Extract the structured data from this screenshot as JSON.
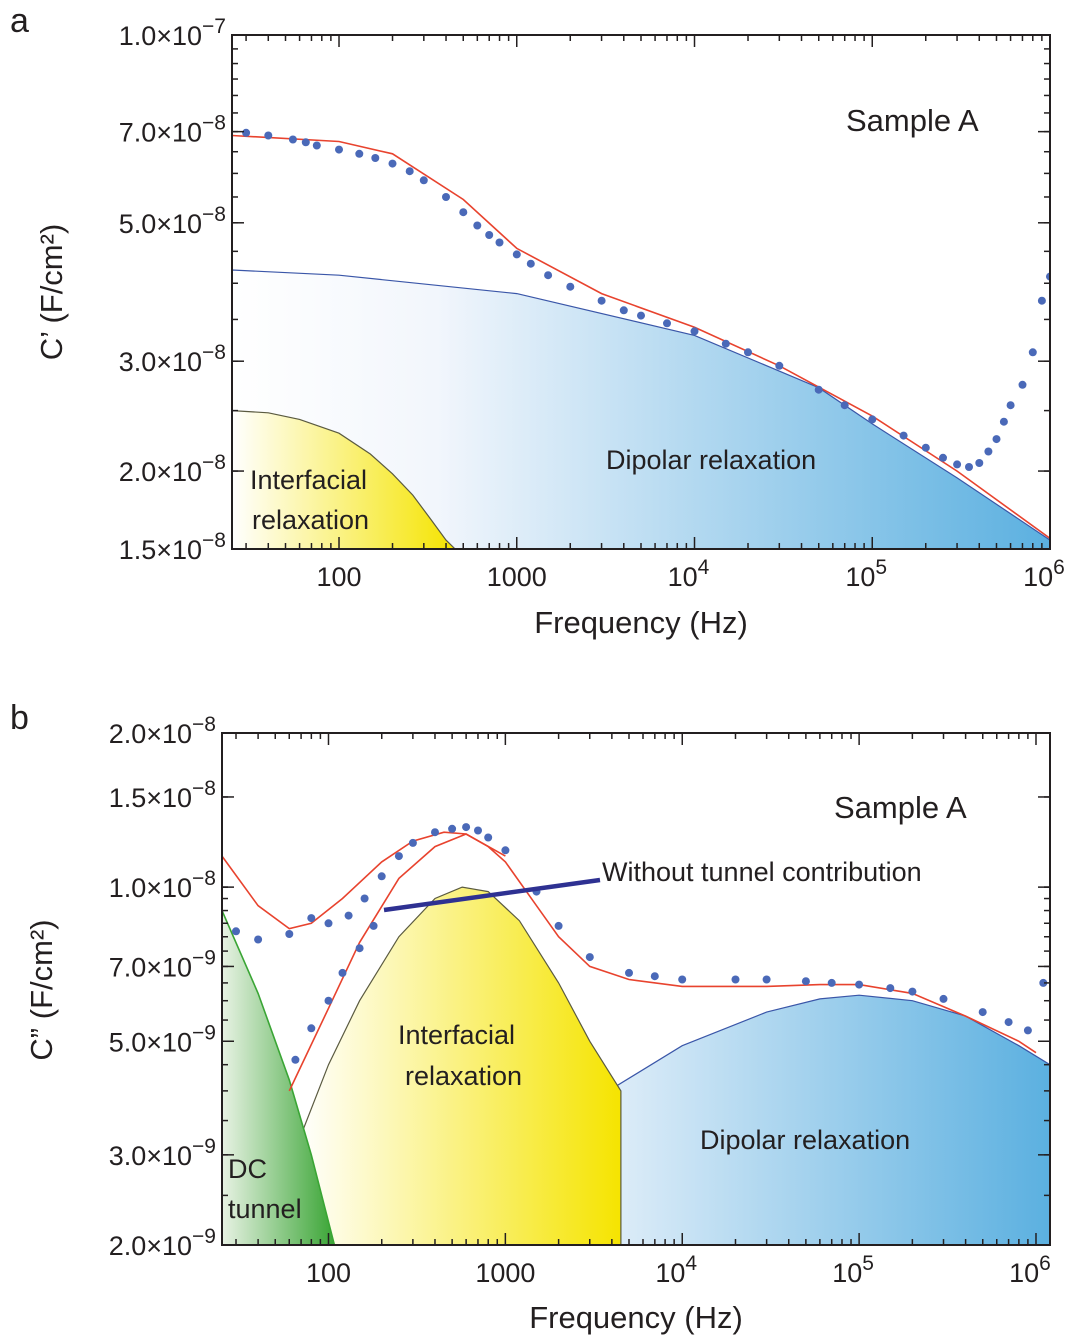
{
  "chart_data": [
    {
      "panel": "a",
      "type": "scatter",
      "sample_label": "Sample A",
      "xlabel": "Frequency (Hz)",
      "ylabel": "C’ (F/cm²)",
      "x_scale": "log",
      "y_scale": "log",
      "xlim": [
        25,
        1000000
      ],
      "ylim": [
        1.5e-08,
        1e-07
      ],
      "grid": false,
      "x_ticks": [
        {
          "value": 100,
          "label": "100"
        },
        {
          "value": 1000,
          "label": "1000"
        },
        {
          "value": 10000,
          "base": "10",
          "exp": "4"
        },
        {
          "value": 100000,
          "base": "10",
          "exp": "5"
        },
        {
          "value": 1000000,
          "base": "10",
          "exp": "6"
        }
      ],
      "y_ticks": [
        {
          "value": 1e-07,
          "mant": "1.0",
          "exp": "−7"
        },
        {
          "value": 7e-08,
          "mant": "7.0",
          "exp": "−8"
        },
        {
          "value": 5e-08,
          "mant": "5.0",
          "exp": "−8"
        },
        {
          "value": 3e-08,
          "mant": "3.0",
          "exp": "−8"
        },
        {
          "value": 2e-08,
          "mant": "2.0",
          "exp": "−8"
        },
        {
          "value": 1.5e-08,
          "mant": "1.5",
          "exp": "−8"
        }
      ],
      "regions": [
        {
          "label_lines": [
            "Interfacial",
            "relaxation"
          ],
          "color": "#f5e400",
          "x": [
            25,
            40,
            60,
            100,
            150,
            200,
            260,
            330,
            400,
            450
          ],
          "y": [
            2.5e-08,
            2.48e-08,
            2.42e-08,
            2.3e-08,
            2.13e-08,
            1.98e-08,
            1.83e-08,
            1.67e-08,
            1.55e-08,
            1.5e-08
          ]
        },
        {
          "label_lines": [
            "Dipolar relaxation"
          ],
          "color": "#5bb0e0",
          "x": [
            25,
            100,
            1000,
            10000,
            50000,
            100000,
            300000,
            1000000
          ],
          "y": [
            4.2e-08,
            4.12e-08,
            3.85e-08,
            3.3e-08,
            2.72e-08,
            2.38e-08,
            1.95e-08,
            1.55e-08
          ]
        }
      ],
      "fit": {
        "color": "#e8432e",
        "x": [
          25,
          100,
          200,
          500,
          1000,
          3000,
          10000,
          30000,
          100000,
          300000,
          1000000
        ],
        "y": [
          6.9e-08,
          6.75e-08,
          6.45e-08,
          5.45e-08,
          4.55e-08,
          3.85e-08,
          3.4e-08,
          2.95e-08,
          2.45e-08,
          2e-08,
          1.56e-08
        ]
      },
      "series": [
        {
          "marker_color": "#4a69b8",
          "x": [
            30,
            40,
            55,
            65,
            75,
            100,
            130,
            160,
            200,
            250,
            300,
            400,
            500,
            600,
            700,
            800,
            1000,
            1200,
            1500,
            2000,
            3000,
            4000,
            5000,
            7000,
            10000,
            15000,
            20000,
            30000,
            50000,
            70000,
            100000,
            150000,
            200000,
            250000,
            300000,
            350000,
            400000,
            450000,
            500000,
            550000,
            600000,
            700000,
            800000,
            900000,
            1000000
          ],
          "y": [
            6.97e-08,
            6.9e-08,
            6.8e-08,
            6.73e-08,
            6.65e-08,
            6.55e-08,
            6.45e-08,
            6.35e-08,
            6.22e-08,
            6.05e-08,
            5.85e-08,
            5.5e-08,
            5.2e-08,
            4.95e-08,
            4.78e-08,
            4.65e-08,
            4.45e-08,
            4.3e-08,
            4.12e-08,
            3.95e-08,
            3.75e-08,
            3.62e-08,
            3.55e-08,
            3.45e-08,
            3.35e-08,
            3.2e-08,
            3.1e-08,
            2.95e-08,
            2.7e-08,
            2.55e-08,
            2.42e-08,
            2.28e-08,
            2.18e-08,
            2.1e-08,
            2.05e-08,
            2.03e-08,
            2.06e-08,
            2.15e-08,
            2.25e-08,
            2.4e-08,
            2.55e-08,
            2.75e-08,
            3.1e-08,
            3.75e-08,
            4.1e-08
          ]
        }
      ]
    },
    {
      "panel": "b",
      "type": "scatter",
      "sample_label": "Sample A",
      "xlabel": "Frequency (Hz)",
      "ylabel": "C” (F/cm²)",
      "x_scale": "log",
      "y_scale": "log",
      "xlim": [
        25,
        1200000
      ],
      "ylim": [
        2e-09,
        2e-08
      ],
      "grid": false,
      "x_ticks": [
        {
          "value": 100,
          "label": "100"
        },
        {
          "value": 1000,
          "label": "1000"
        },
        {
          "value": 10000,
          "base": "10",
          "exp": "4"
        },
        {
          "value": 100000,
          "base": "10",
          "exp": "5"
        },
        {
          "value": 1000000,
          "base": "10",
          "exp": "6"
        }
      ],
      "y_ticks": [
        {
          "value": 2e-08,
          "mant": "2.0",
          "exp": "−8"
        },
        {
          "value": 1.5e-08,
          "mant": "1.5",
          "exp": "−8"
        },
        {
          "value": 1e-08,
          "mant": "1.0",
          "exp": "−8"
        },
        {
          "value": 7e-09,
          "mant": "7.0",
          "exp": "−9"
        },
        {
          "value": 5e-09,
          "mant": "5.0",
          "exp": "−9"
        },
        {
          "value": 3e-09,
          "mant": "3.0",
          "exp": "−9"
        },
        {
          "value": 2e-09,
          "mant": "2.0",
          "exp": "−9"
        }
      ],
      "annotation": "Without tunnel contribution",
      "regions": [
        {
          "label_lines": [
            "DC",
            "tunnel"
          ],
          "color": "#3aa535",
          "x": [
            25,
            40,
            60,
            80,
            108
          ],
          "y": [
            9e-09,
            6.2e-09,
            4.2e-09,
            3e-09,
            2e-09
          ]
        },
        {
          "label_lines": [
            "Interfacial",
            "relaxation"
          ],
          "color": "#f5e400",
          "x": [
            68,
            100,
            150,
            250,
            400,
            570,
            800,
            1200,
            2000,
            3000,
            4500
          ],
          "y": [
            3.2e-09,
            4.5e-09,
            6e-09,
            8e-09,
            9.5e-09,
            1e-08,
            9.8e-09,
            8.6e-09,
            6.5e-09,
            5e-09,
            4e-09
          ]
        },
        {
          "label_lines": [
            "Dipolar relaxation"
          ],
          "color": "#5bb0e0",
          "x": [
            330,
            1000,
            3000,
            10000,
            30000,
            60000,
            100000,
            200000,
            400000,
            800000,
            1200000
          ],
          "y": [
            2e-09,
            2.8e-09,
            3.8e-09,
            4.9e-09,
            5.7e-09,
            6.05e-09,
            6.15e-09,
            6e-09,
            5.6e-09,
            4.9e-09,
            4.5e-09
          ]
        }
      ],
      "fit": {
        "color": "#e8432e",
        "x": [
          25,
          40,
          60,
          80,
          120,
          200,
          300,
          450,
          600,
          800,
          1000,
          1500,
          2000,
          3000,
          5000,
          10000,
          30000,
          60000,
          100000,
          200000,
          400000,
          800000,
          1000000
        ],
        "y": [
          1.15e-08,
          9.2e-09,
          8.3e-09,
          8.5e-09,
          9.5e-09,
          1.12e-08,
          1.23e-08,
          1.28e-08,
          1.27e-08,
          1.2e-08,
          1.12e-08,
          9.2e-09,
          8e-09,
          7e-09,
          6.6e-09,
          6.4e-09,
          6.4e-09,
          6.45e-09,
          6.45e-09,
          6.2e-09,
          5.6e-09,
          5e-09,
          4.75e-09
        ]
      },
      "fit_without_tunnel": {
        "color": "#e8432e",
        "x": [
          60,
          100,
          150,
          250,
          400,
          600,
          1000
        ],
        "y": [
          4e-09,
          5.8e-09,
          7.8e-09,
          1.04e-08,
          1.2e-08,
          1.27e-08,
          1.15e-08
        ]
      },
      "series": [
        {
          "marker_color": "#4a69b8",
          "x": [
            30,
            40,
            60,
            80,
            100,
            130,
            160,
            200,
            250,
            300,
            400,
            500,
            600,
            700,
            800,
            1000,
            1500,
            2000,
            3000,
            5000,
            7000,
            10000,
            20000,
            30000,
            50000,
            70000,
            100000,
            150000,
            200000,
            300000,
            500000,
            700000,
            900000,
            1100000
          ],
          "y": [
            8.2e-09,
            7.9e-09,
            8.1e-09,
            8.7e-09,
            8.5e-09,
            8.8e-09,
            9.5e-09,
            1.05e-08,
            1.15e-08,
            1.22e-08,
            1.28e-08,
            1.3e-08,
            1.31e-08,
            1.29e-08,
            1.25e-08,
            1.18e-08,
            9.8e-09,
            8.4e-09,
            7.3e-09,
            6.8e-09,
            6.7e-09,
            6.6e-09,
            6.6e-09,
            6.6e-09,
            6.55e-09,
            6.5e-09,
            6.45e-09,
            6.35e-09,
            6.25e-09,
            6.05e-09,
            5.7e-09,
            5.45e-09,
            5.25e-09,
            6.5e-09
          ]
        },
        {
          "marker_color": "#4a69b8",
          "x": [
            65,
            80,
            100,
            120,
            150,
            180
          ],
          "y": [
            4.6e-09,
            5.3e-09,
            6e-09,
            6.8e-09,
            7.6e-09,
            8.4e-09
          ]
        }
      ]
    }
  ]
}
